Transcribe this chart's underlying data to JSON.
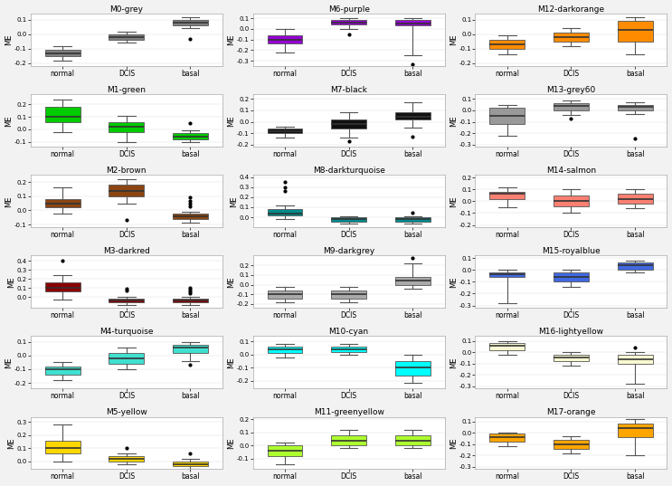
{
  "modules": [
    {
      "name": "M0-grey",
      "color": "#808080",
      "groups": [
        {
          "label": "normal",
          "median": -0.13,
          "q1": -0.15,
          "q3": -0.11,
          "whislo": -0.18,
          "whishi": -0.08,
          "fliers": []
        },
        {
          "label": "DCIS",
          "median": -0.02,
          "q1": -0.04,
          "q3": 0.0,
          "whislo": -0.06,
          "whishi": 0.02,
          "fliers": []
        },
        {
          "label": "basal",
          "median": 0.08,
          "q1": 0.06,
          "q3": 0.1,
          "whislo": 0.04,
          "whishi": 0.12,
          "fliers": [
            -0.03
          ]
        }
      ],
      "ylim": [
        -0.22,
        0.14
      ],
      "yticks": [
        -0.2,
        -0.1,
        0.0,
        0.1
      ]
    },
    {
      "name": "M6-purple",
      "color": "#9400D3",
      "groups": [
        {
          "label": "normal",
          "median": -0.1,
          "q1": -0.14,
          "q3": -0.06,
          "whislo": -0.22,
          "whishi": 0.0,
          "fliers": []
        },
        {
          "label": "DCIS",
          "median": 0.06,
          "q1": 0.04,
          "q3": 0.08,
          "whislo": 0.0,
          "whishi": 0.1,
          "fliers": [
            -0.05
          ]
        },
        {
          "label": "basal",
          "median": 0.05,
          "q1": 0.03,
          "q3": 0.08,
          "whislo": -0.25,
          "whishi": 0.1,
          "fliers": [
            -0.33
          ]
        }
      ],
      "ylim": [
        -0.35,
        0.14
      ],
      "yticks": [
        -0.3,
        -0.2,
        -0.1,
        0.0,
        0.1
      ]
    },
    {
      "name": "M12-darkorange",
      "color": "#FF8C00",
      "groups": [
        {
          "label": "normal",
          "median": -0.07,
          "q1": -0.1,
          "q3": -0.04,
          "whislo": -0.14,
          "whishi": -0.01,
          "fliers": []
        },
        {
          "label": "DCIS",
          "median": -0.02,
          "q1": -0.05,
          "q3": 0.01,
          "whislo": -0.08,
          "whishi": 0.04,
          "fliers": []
        },
        {
          "label": "basal",
          "median": 0.03,
          "q1": -0.05,
          "q3": 0.09,
          "whislo": -0.14,
          "whishi": 0.12,
          "fliers": []
        }
      ],
      "ylim": [
        -0.22,
        0.14
      ],
      "yticks": [
        -0.2,
        -0.1,
        0.0,
        0.1
      ]
    },
    {
      "name": "M1-green",
      "color": "#00CC00",
      "groups": [
        {
          "label": "normal",
          "median": 0.1,
          "q1": 0.06,
          "q3": 0.18,
          "whislo": -0.02,
          "whishi": 0.24,
          "fliers": []
        },
        {
          "label": "DCIS",
          "median": 0.02,
          "q1": -0.02,
          "q3": 0.06,
          "whislo": -0.1,
          "whishi": 0.11,
          "fliers": []
        },
        {
          "label": "basal",
          "median": -0.06,
          "q1": -0.08,
          "q3": -0.03,
          "whislo": -0.1,
          "whishi": -0.01,
          "fliers": [
            0.05
          ]
        }
      ],
      "ylim": [
        -0.14,
        0.28
      ],
      "yticks": [
        -0.1,
        0.0,
        0.1,
        0.2
      ]
    },
    {
      "name": "M7-black",
      "color": "#111111",
      "groups": [
        {
          "label": "normal",
          "median": -0.08,
          "q1": -0.1,
          "q3": -0.06,
          "whislo": -0.14,
          "whishi": -0.04,
          "fliers": []
        },
        {
          "label": "DCIS",
          "median": -0.02,
          "q1": -0.06,
          "q3": 0.02,
          "whislo": -0.14,
          "whishi": 0.08,
          "fliers": [
            -0.17
          ]
        },
        {
          "label": "basal",
          "median": 0.04,
          "q1": 0.02,
          "q3": 0.08,
          "whislo": -0.05,
          "whishi": 0.17,
          "fliers": [
            -0.13
          ]
        }
      ],
      "ylim": [
        -0.22,
        0.24
      ],
      "yticks": [
        -0.2,
        -0.1,
        0.0,
        0.1,
        0.2
      ]
    },
    {
      "name": "M13-grey60",
      "color": "#999999",
      "groups": [
        {
          "label": "normal",
          "median": -0.05,
          "q1": -0.12,
          "q3": 0.02,
          "whislo": -0.22,
          "whishi": 0.05,
          "fliers": []
        },
        {
          "label": "DCIS",
          "median": 0.04,
          "q1": 0.0,
          "q3": 0.06,
          "whislo": -0.04,
          "whishi": 0.09,
          "fliers": [
            -0.07
          ]
        },
        {
          "label": "basal",
          "median": 0.03,
          "q1": 0.0,
          "q3": 0.05,
          "whislo": -0.03,
          "whishi": 0.07,
          "fliers": [
            -0.25
          ]
        }
      ],
      "ylim": [
        -0.32,
        0.14
      ],
      "yticks": [
        -0.3,
        -0.2,
        -0.1,
        0.0,
        0.1
      ]
    },
    {
      "name": "M2-brown",
      "color": "#8B4513",
      "groups": [
        {
          "label": "normal",
          "median": 0.05,
          "q1": 0.02,
          "q3": 0.08,
          "whislo": -0.02,
          "whishi": 0.16,
          "fliers": []
        },
        {
          "label": "DCIS",
          "median": 0.14,
          "q1": 0.1,
          "q3": 0.18,
          "whislo": 0.05,
          "whishi": 0.22,
          "fliers": [
            -0.07
          ]
        },
        {
          "label": "basal",
          "median": -0.04,
          "q1": -0.06,
          "q3": -0.02,
          "whislo": -0.09,
          "whishi": -0.01,
          "fliers": [
            0.03,
            0.05,
            0.07,
            0.09
          ]
        }
      ],
      "ylim": [
        -0.12,
        0.25
      ],
      "yticks": [
        -0.1,
        0.0,
        0.1,
        0.2
      ]
    },
    {
      "name": "M8-darkturquoise",
      "color": "#008B8B",
      "groups": [
        {
          "label": "normal",
          "median": 0.04,
          "q1": 0.02,
          "q3": 0.08,
          "whislo": -0.02,
          "whishi": 0.12,
          "fliers": [
            0.35,
            0.3,
            0.26
          ]
        },
        {
          "label": "DCIS",
          "median": -0.02,
          "q1": -0.04,
          "q3": 0.0,
          "whislo": -0.06,
          "whishi": 0.01,
          "fliers": []
        },
        {
          "label": "basal",
          "median": -0.02,
          "q1": -0.04,
          "q3": 0.0,
          "whislo": -0.06,
          "whishi": 0.01,
          "fliers": [
            0.05
          ]
        }
      ],
      "ylim": [
        -0.1,
        0.42
      ],
      "yticks": [
        0.0,
        0.1,
        0.2,
        0.3,
        0.4
      ]
    },
    {
      "name": "M14-salmon",
      "color": "#FA8072",
      "groups": [
        {
          "label": "normal",
          "median": 0.06,
          "q1": 0.02,
          "q3": 0.08,
          "whislo": -0.05,
          "whishi": 0.12,
          "fliers": []
        },
        {
          "label": "DCIS",
          "median": 0.0,
          "q1": -0.04,
          "q3": 0.05,
          "whislo": -0.1,
          "whishi": 0.1,
          "fliers": []
        },
        {
          "label": "basal",
          "median": 0.02,
          "q1": -0.02,
          "q3": 0.06,
          "whislo": -0.06,
          "whishi": 0.1,
          "fliers": []
        }
      ],
      "ylim": [
        -0.22,
        0.22
      ],
      "yticks": [
        -0.2,
        -0.1,
        0.0,
        0.1,
        0.2
      ]
    },
    {
      "name": "M3-darkred",
      "color": "#8B0000",
      "groups": [
        {
          "label": "normal",
          "median": 0.1,
          "q1": 0.06,
          "q3": 0.16,
          "whislo": -0.03,
          "whishi": 0.24,
          "fliers": [
            0.4
          ]
        },
        {
          "label": "DCIS",
          "median": -0.04,
          "q1": -0.06,
          "q3": -0.02,
          "whislo": -0.09,
          "whishi": 0.0,
          "fliers": [
            0.07,
            0.09
          ]
        },
        {
          "label": "basal",
          "median": -0.04,
          "q1": -0.06,
          "q3": -0.02,
          "whislo": -0.09,
          "whishi": 0.0,
          "fliers": [
            0.04,
            0.06,
            0.08,
            0.1
          ]
        }
      ],
      "ylim": [
        -0.12,
        0.46
      ],
      "yticks": [
        0.0,
        0.1,
        0.2,
        0.3,
        0.4
      ]
    },
    {
      "name": "M9-darkgrey",
      "color": "#A9A9A9",
      "groups": [
        {
          "label": "normal",
          "median": -0.1,
          "q1": -0.14,
          "q3": -0.06,
          "whislo": -0.18,
          "whishi": -0.02,
          "fliers": []
        },
        {
          "label": "DCIS",
          "median": -0.1,
          "q1": -0.14,
          "q3": -0.06,
          "whislo": -0.18,
          "whishi": -0.02,
          "fliers": []
        },
        {
          "label": "basal",
          "median": 0.04,
          "q1": 0.0,
          "q3": 0.08,
          "whislo": -0.04,
          "whishi": 0.22,
          "fliers": [
            0.28
          ]
        }
      ],
      "ylim": [
        -0.24,
        0.3
      ],
      "yticks": [
        -0.2,
        -0.1,
        0.0,
        0.1,
        0.2
      ]
    },
    {
      "name": "M15-royalblue",
      "color": "#4169E1",
      "groups": [
        {
          "label": "normal",
          "median": -0.04,
          "q1": -0.06,
          "q3": -0.02,
          "whislo": -0.28,
          "whishi": 0.0,
          "fliers": []
        },
        {
          "label": "DCIS",
          "median": -0.06,
          "q1": -0.1,
          "q3": -0.02,
          "whislo": -0.14,
          "whishi": 0.0,
          "fliers": []
        },
        {
          "label": "basal",
          "median": 0.04,
          "q1": 0.0,
          "q3": 0.06,
          "whislo": -0.02,
          "whishi": 0.08,
          "fliers": []
        }
      ],
      "ylim": [
        -0.32,
        0.12
      ],
      "yticks": [
        -0.3,
        -0.2,
        -0.1,
        0.0,
        0.1
      ]
    },
    {
      "name": "M4-turquoise",
      "color": "#40E0D0",
      "groups": [
        {
          "label": "normal",
          "median": -0.1,
          "q1": -0.14,
          "q3": -0.08,
          "whislo": -0.18,
          "whishi": -0.05,
          "fliers": []
        },
        {
          "label": "DCIS",
          "median": -0.02,
          "q1": -0.06,
          "q3": 0.02,
          "whislo": -0.1,
          "whishi": 0.06,
          "fliers": []
        },
        {
          "label": "basal",
          "median": 0.06,
          "q1": 0.02,
          "q3": 0.08,
          "whislo": -0.04,
          "whishi": 0.1,
          "fliers": [
            -0.07
          ]
        }
      ],
      "ylim": [
        -0.24,
        0.14
      ],
      "yticks": [
        -0.2,
        -0.1,
        0.0,
        0.1
      ]
    },
    {
      "name": "M10-cyan",
      "color": "#00FFFF",
      "groups": [
        {
          "label": "normal",
          "median": 0.04,
          "q1": 0.01,
          "q3": 0.06,
          "whislo": -0.02,
          "whishi": 0.08,
          "fliers": []
        },
        {
          "label": "DCIS",
          "median": 0.04,
          "q1": 0.02,
          "q3": 0.06,
          "whislo": 0.0,
          "whishi": 0.08,
          "fliers": []
        },
        {
          "label": "basal",
          "median": -0.1,
          "q1": -0.16,
          "q3": -0.05,
          "whislo": -0.22,
          "whishi": 0.0,
          "fliers": []
        }
      ],
      "ylim": [
        -0.26,
        0.14
      ],
      "yticks": [
        -0.2,
        -0.1,
        0.0,
        0.1
      ]
    },
    {
      "name": "M16-lightyellow",
      "color": "#FAFAD2",
      "groups": [
        {
          "label": "normal",
          "median": 0.06,
          "q1": 0.02,
          "q3": 0.08,
          "whislo": -0.02,
          "whishi": 0.1,
          "fliers": []
        },
        {
          "label": "DCIS",
          "median": -0.05,
          "q1": -0.08,
          "q3": -0.02,
          "whislo": -0.12,
          "whishi": 0.0,
          "fliers": []
        },
        {
          "label": "basal",
          "median": -0.06,
          "q1": -0.1,
          "q3": -0.02,
          "whislo": -0.28,
          "whishi": 0.0,
          "fliers": [
            0.04
          ]
        }
      ],
      "ylim": [
        -0.32,
        0.14
      ],
      "yticks": [
        -0.3,
        -0.2,
        -0.1,
        0.0,
        0.1
      ]
    },
    {
      "name": "M5-yellow",
      "color": "#FFD700",
      "groups": [
        {
          "label": "normal",
          "median": 0.1,
          "q1": 0.06,
          "q3": 0.16,
          "whislo": 0.0,
          "whishi": 0.28,
          "fliers": []
        },
        {
          "label": "DCIS",
          "median": 0.02,
          "q1": 0.0,
          "q3": 0.04,
          "whislo": -0.02,
          "whishi": 0.06,
          "fliers": [
            0.1
          ]
        },
        {
          "label": "basal",
          "median": -0.02,
          "q1": -0.04,
          "q3": 0.0,
          "whislo": -0.06,
          "whishi": 0.02,
          "fliers": [
            0.06
          ]
        }
      ],
      "ylim": [
        -0.06,
        0.34
      ],
      "yticks": [
        0.0,
        0.1,
        0.2,
        0.3
      ]
    },
    {
      "name": "M11-greenyellow",
      "color": "#ADFF2F",
      "groups": [
        {
          "label": "normal",
          "median": -0.04,
          "q1": -0.08,
          "q3": 0.0,
          "whislo": -0.14,
          "whishi": 0.02,
          "fliers": []
        },
        {
          "label": "DCIS",
          "median": 0.04,
          "q1": 0.0,
          "q3": 0.08,
          "whislo": -0.02,
          "whishi": 0.12,
          "fliers": []
        },
        {
          "label": "basal",
          "median": 0.04,
          "q1": 0.0,
          "q3": 0.08,
          "whislo": -0.02,
          "whishi": 0.12,
          "fliers": []
        }
      ],
      "ylim": [
        -0.18,
        0.22
      ],
      "yticks": [
        -0.1,
        0.0,
        0.1,
        0.2
      ]
    },
    {
      "name": "M17-orange",
      "color": "#FFA500",
      "groups": [
        {
          "label": "normal",
          "median": -0.04,
          "q1": -0.08,
          "q3": -0.01,
          "whislo": -0.12,
          "whishi": 0.0,
          "fliers": []
        },
        {
          "label": "DCIS",
          "median": -0.1,
          "q1": -0.14,
          "q3": -0.06,
          "whislo": -0.18,
          "whishi": -0.03,
          "fliers": []
        },
        {
          "label": "basal",
          "median": 0.04,
          "q1": -0.04,
          "q3": 0.08,
          "whislo": -0.2,
          "whishi": 0.12,
          "fliers": []
        }
      ],
      "ylim": [
        -0.32,
        0.14
      ],
      "yticks": [
        -0.3,
        -0.2,
        -0.1,
        0.0,
        0.1
      ]
    }
  ],
  "bg_color": "#f2f2f2",
  "plot_bg": "#ffffff",
  "box_edge_color": "#555555",
  "median_color": "#333333",
  "whisker_color": "#555555",
  "cap_color": "#555555",
  "flier_color": "#333333"
}
